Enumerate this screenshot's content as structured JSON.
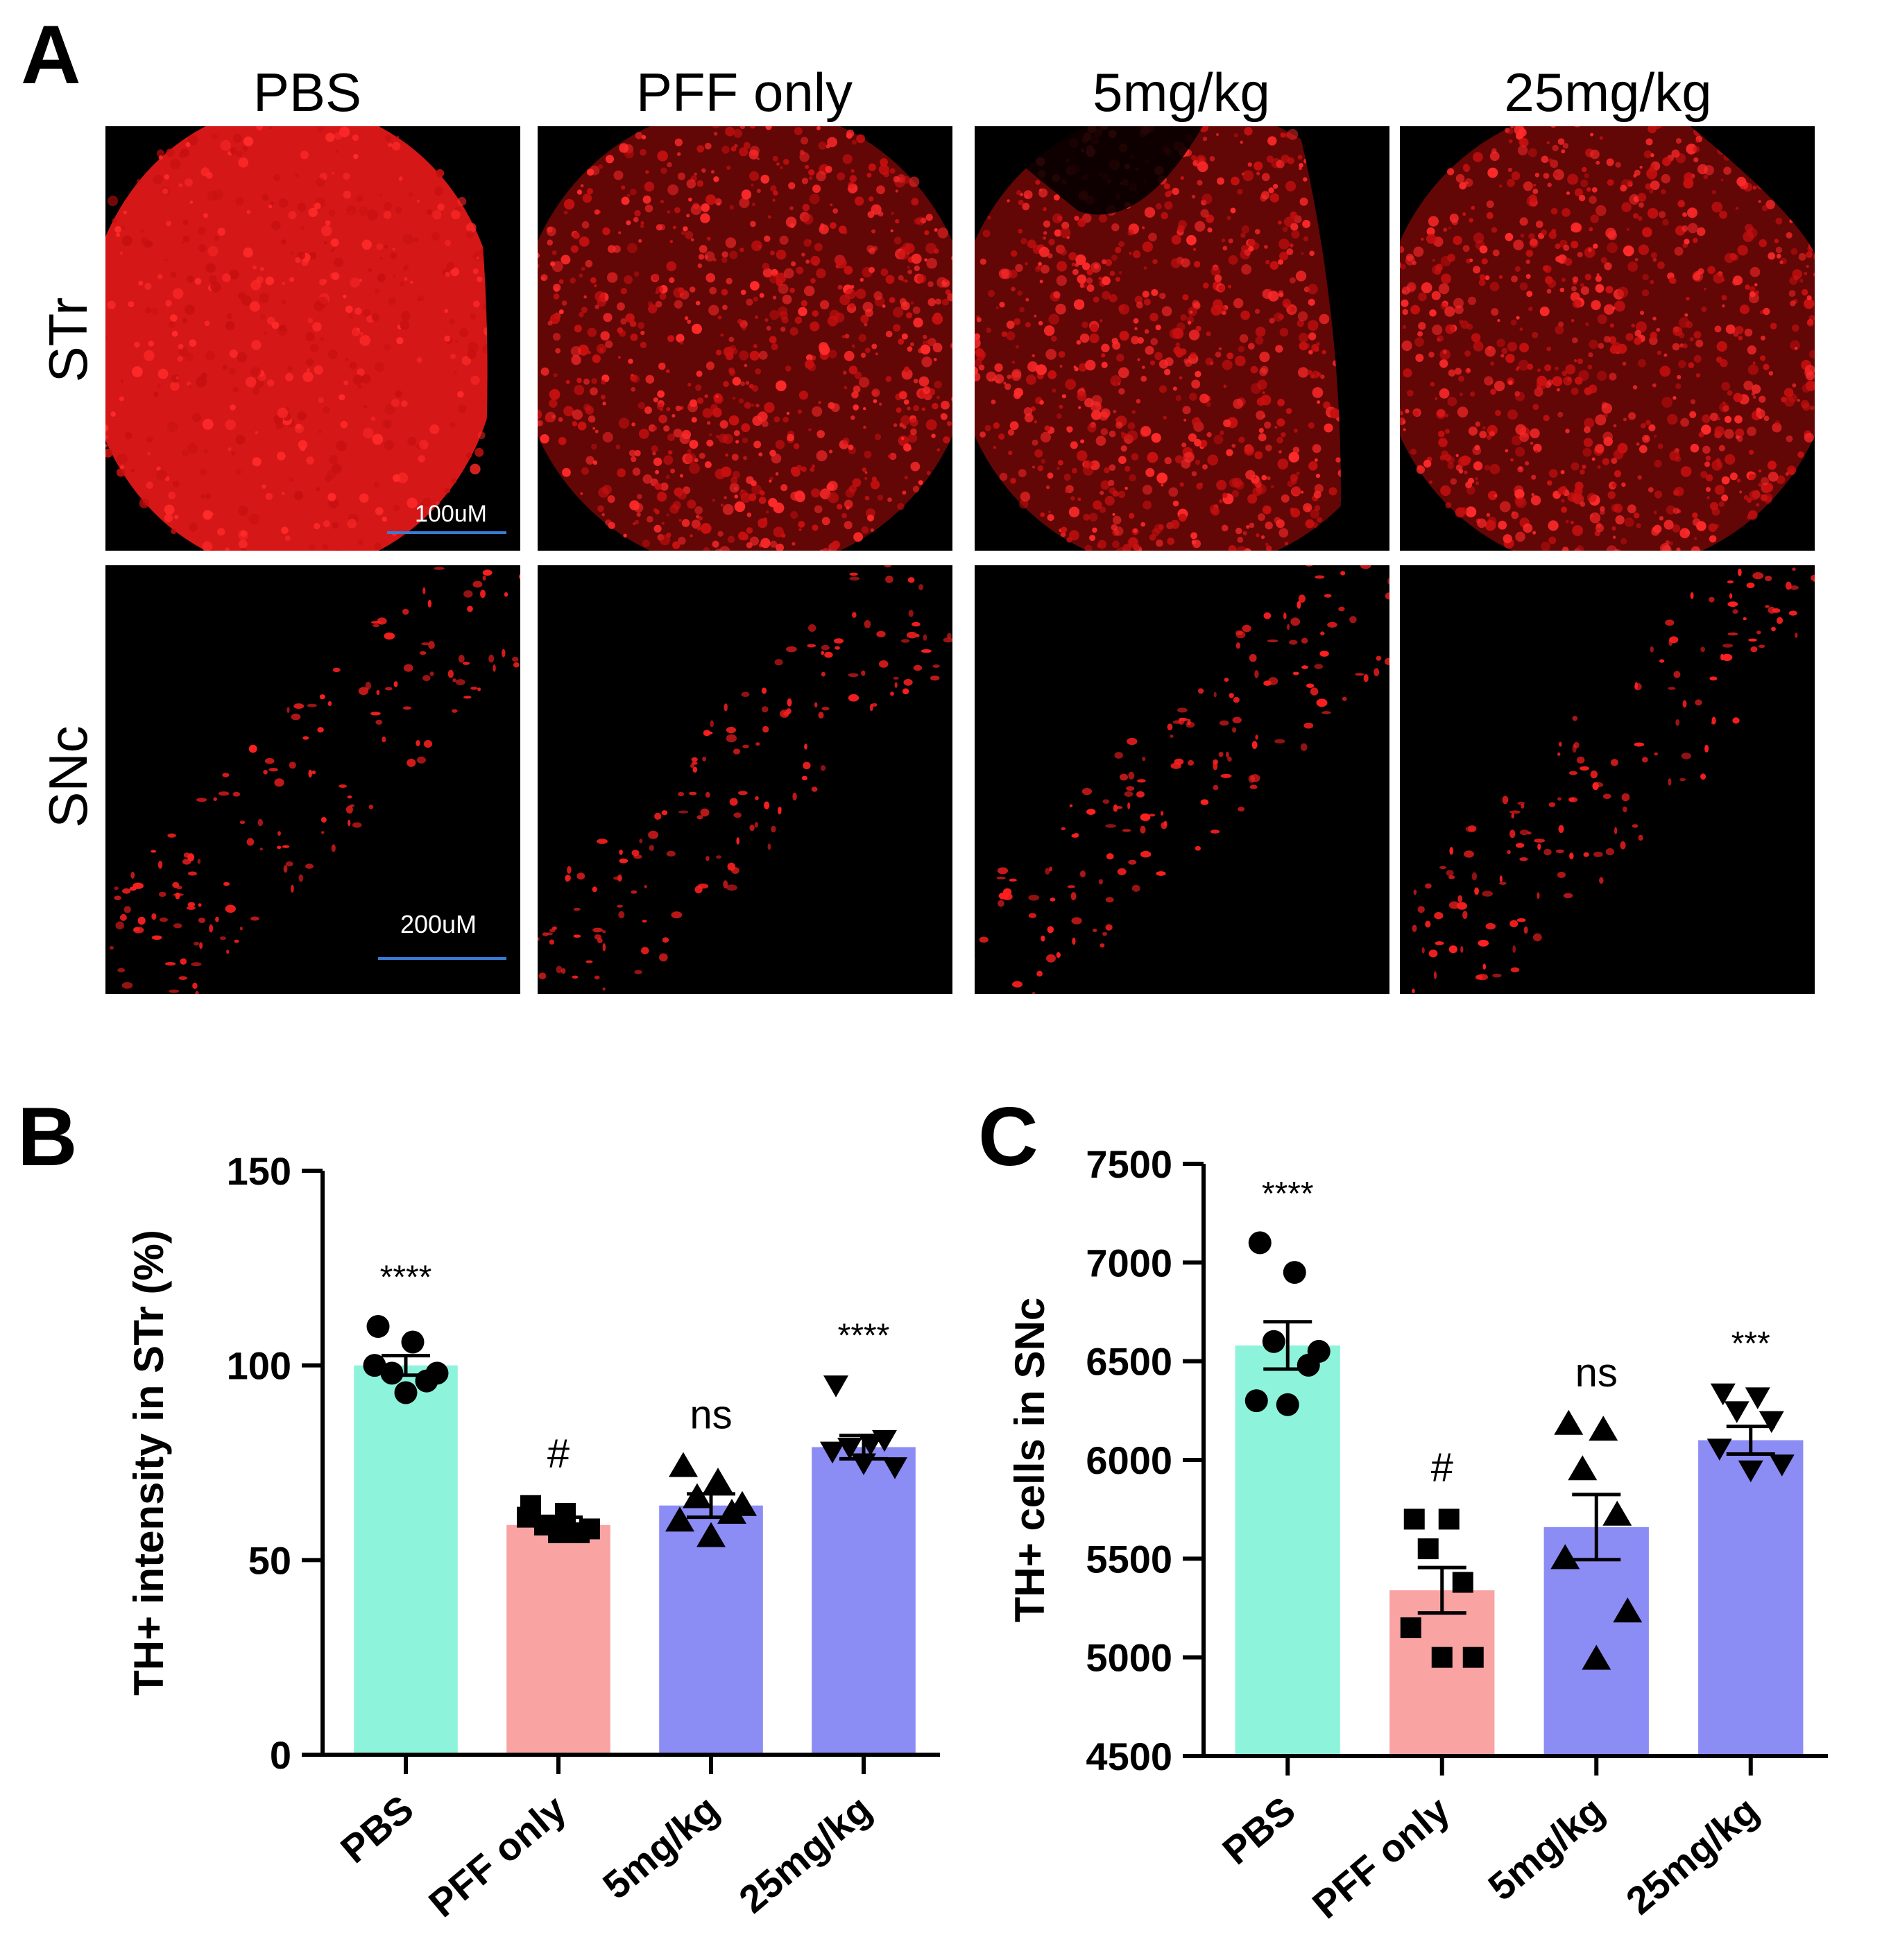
{
  "panel_a": {
    "letter": "A",
    "columns": [
      "PBS",
      "PFF only",
      "5mg/kg",
      "25mg/kg"
    ],
    "rows": [
      "STr",
      "SNc"
    ],
    "scale_bars": {
      "str": "100uM",
      "snc": "200uM"
    },
    "colors": {
      "background": "#000000",
      "stain": "#ff2020",
      "scale_bar": "#3a7bd5"
    }
  },
  "chart_data": [
    {
      "panel": "B",
      "type": "bar",
      "categories": [
        "PBS",
        "PFF only",
        "5mg/kg",
        "25mg/kg"
      ],
      "values": [
        100,
        59,
        64,
        79
      ],
      "sem": [
        2.5,
        2,
        3,
        3
      ],
      "points": [
        [
          110,
          106,
          98,
          96,
          100,
          98,
          93
        ],
        [
          64,
          62,
          59,
          57,
          61,
          58,
          57
        ],
        [
          74,
          70,
          66,
          62,
          60,
          64,
          56
        ],
        [
          95,
          80,
          79,
          81,
          78,
          74,
          75
        ]
      ],
      "markers": [
        "circle",
        "square",
        "triangle-up",
        "triangle-down"
      ],
      "annotations": [
        "****",
        "#",
        "ns",
        "****"
      ],
      "ylabel": "TH+ intensity in STr (%)",
      "ylim": [
        0,
        150
      ],
      "yticks": [
        0,
        50,
        100,
        150
      ],
      "colors": [
        "#8ef3db",
        "#f9a3a3",
        "#8c8cf5",
        "#8c8cf5"
      ]
    },
    {
      "panel": "C",
      "type": "bar",
      "categories": [
        "PBS",
        "PFF only",
        "5mg/kg",
        "25mg/kg"
      ],
      "values": [
        6580,
        5340,
        5660,
        6100
      ],
      "sem": [
        120,
        115,
        165,
        70
      ],
      "points": [
        [
          7100,
          6950,
          6600,
          6480,
          6300,
          6550,
          6280
        ],
        [
          5700,
          5700,
          5550,
          5380,
          5150,
          5000,
          5000
        ],
        [
          6180,
          6150,
          5950,
          5720,
          5500,
          5230,
          4990
        ],
        [
          6340,
          6320,
          6250,
          6200,
          6060,
          5980,
          5950
        ]
      ],
      "markers": [
        "circle",
        "square",
        "triangle-up",
        "triangle-down"
      ],
      "annotations": [
        "****",
        "#",
        "ns",
        "***"
      ],
      "ylabel": "TH+ cells in SNc",
      "ylim": [
        4500,
        7500
      ],
      "yticks": [
        4500,
        5000,
        5500,
        6000,
        6500,
        7000,
        7500
      ],
      "colors": [
        "#8ef3db",
        "#f9a3a3",
        "#8c8cf5",
        "#8c8cf5"
      ]
    }
  ]
}
